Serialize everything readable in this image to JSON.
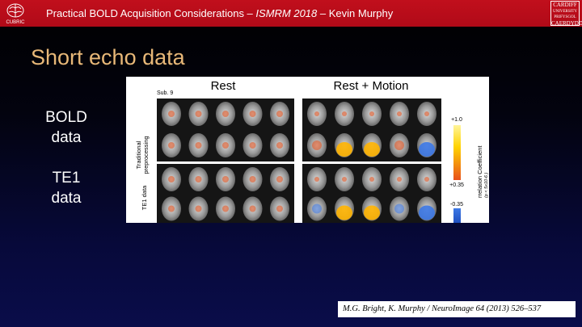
{
  "header": {
    "title_pre": "Practical BOLD Acquisition Considerations – ",
    "title_em": "ISMRM 2018",
    "title_post": " – Kevin Murphy",
    "left_logo_text": "CUBRIC",
    "right_logo_lines": [
      "CARDIFF",
      "UNIVERSITY",
      "PRIFYSGOL",
      "CAERDYDD"
    ]
  },
  "slide": {
    "title": "Short echo data",
    "labels": {
      "bold_line1": "BOLD",
      "bold_line2": "data",
      "te1_line1": "TE1",
      "te1_line2": "data"
    }
  },
  "figure": {
    "col_rest": "Rest",
    "col_motion": "Rest + Motion",
    "subject": "Sub. 9",
    "row1_label_line1": "Traditional",
    "row1_label_line2": "preprocessing",
    "row2_label": "TE1 data",
    "scale_max": "+1.0",
    "scale_pos": "+0.35",
    "scale_neg": "-0.35",
    "scale_label": "rrelation Coefficient",
    "scale_sublabel": "(p < 5x10-6 )",
    "colors": {
      "positive_hot": "#ffb400",
      "positive_low": "#e8501a",
      "negative": "#3c78e6"
    }
  },
  "citation": "M.G. Bright, K. Murphy / NeuroImage 64 (2013) 526–537"
}
